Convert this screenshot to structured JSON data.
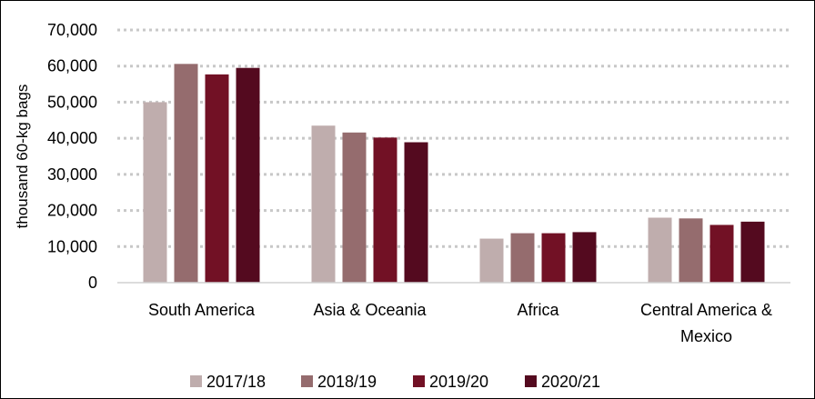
{
  "chart_data": {
    "type": "bar",
    "title": "",
    "xlabel": "",
    "ylabel": "thousand 60-kg bags",
    "ylim": [
      0,
      70000
    ],
    "yticks": [
      "0",
      "10,000",
      "20,000",
      "30,000",
      "40,000",
      "50,000",
      "60,000",
      "70,000"
    ],
    "grid": true,
    "legend_position": "bottom",
    "categories": [
      "South America",
      "Asia & Oceania",
      "Africa",
      "Central America & Mexico"
    ],
    "category_lines": [
      [
        "South America"
      ],
      [
        "Asia & Oceania"
      ],
      [
        "Africa"
      ],
      [
        "Central America &",
        "Mexico"
      ]
    ],
    "series": [
      {
        "name": "2017/18",
        "color": "#bfadad",
        "values": [
          50000,
          43500,
          12200,
          18000
        ]
      },
      {
        "name": "2018/19",
        "color": "#956c6e",
        "values": [
          60600,
          41600,
          13700,
          17800
        ]
      },
      {
        "name": "2019/20",
        "color": "#721125",
        "values": [
          57700,
          40200,
          13700,
          16000
        ]
      },
      {
        "name": "2020/21",
        "color": "#540a1f",
        "values": [
          59500,
          38900,
          14000,
          16900
        ]
      }
    ]
  }
}
